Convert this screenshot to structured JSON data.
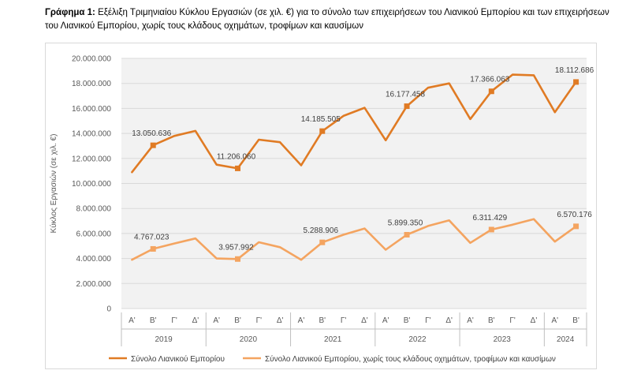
{
  "caption": {
    "prefix": "Γράφημα 1:",
    "text": " Εξέλιξη Τριμηνιαίου Κύκλου Εργασιών (σε χιλ. €) για το σύνολο των επιχειρήσεων του Λιανικού Εμπορίου και των επιχειρήσεων του Λιανικού Εμπορίου, χωρίς τους κλάδους οχημάτων, τροφίμων και καυσίμων"
  },
  "chart_data": {
    "type": "line",
    "ylabel": "Κύκλος Εργασιών (σε χιλ. €)",
    "ylim": [
      0,
      20000000
    ],
    "yticks": [
      0,
      2000000,
      4000000,
      6000000,
      8000000,
      10000000,
      12000000,
      14000000,
      16000000,
      18000000,
      20000000
    ],
    "ytick_labels": [
      "0",
      "2.000.000",
      "4.000.000",
      "6.000.000",
      "8.000.000",
      "10.000.000",
      "12.000.000",
      "14.000.000",
      "16.000.000",
      "18.000.000",
      "20.000.000"
    ],
    "quarters": [
      "Α'",
      "Β'",
      "Γ'",
      "Δ'",
      "Α'",
      "Β'",
      "Γ'",
      "Δ'",
      "Α'",
      "Β'",
      "Γ'",
      "Δ'",
      "Α'",
      "Β'",
      "Γ'",
      "Δ'",
      "Α'",
      "Β'",
      "Γ'",
      "Δ'",
      "Α'",
      "Β'"
    ],
    "years": [
      {
        "label": "2019",
        "count": 4
      },
      {
        "label": "2020",
        "count": 4
      },
      {
        "label": "2021",
        "count": 4
      },
      {
        "label": "2022",
        "count": 4
      },
      {
        "label": "2023",
        "count": 4
      },
      {
        "label": "2024",
        "count": 2
      }
    ],
    "grid": true,
    "legend_position": "bottom",
    "series": [
      {
        "name": "Σύνολο Λιανικού Εμπορίου",
        "color": "#e07b24",
        "values": [
          10900000,
          13050636,
          13800000,
          14200000,
          11500000,
          11206060,
          13500000,
          13300000,
          11450000,
          14185505,
          15400000,
          16050000,
          13450000,
          16177458,
          17650000,
          18000000,
          15150000,
          17366063,
          18700000,
          18650000,
          15700000,
          18112686
        ],
        "markers": [
          1,
          5,
          9,
          13,
          17,
          21
        ],
        "labels": [
          "13.050.636",
          "11.206.060",
          "14.185.505",
          "16.177.458",
          "17.366.063",
          "18.112.686"
        ]
      },
      {
        "name": "Σύνολο Λιανικού Εμπορίου, χωρίς τους κλάδους οχημάτων, τροφίμων και καυσίμων",
        "color": "#f4a460",
        "values": [
          3900000,
          4767023,
          5200000,
          5600000,
          4000000,
          3957992,
          5300000,
          4900000,
          3900000,
          5288906,
          5900000,
          6400000,
          4700000,
          5899350,
          6600000,
          7050000,
          5250000,
          6311429,
          6700000,
          7150000,
          5350000,
          6570176
        ],
        "markers": [
          1,
          5,
          9,
          13,
          17,
          21
        ],
        "labels": [
          "4.767.023",
          "3.957.992",
          "5.288.906",
          "5.899.350",
          "6.311.429",
          "6.570.176"
        ]
      }
    ]
  }
}
